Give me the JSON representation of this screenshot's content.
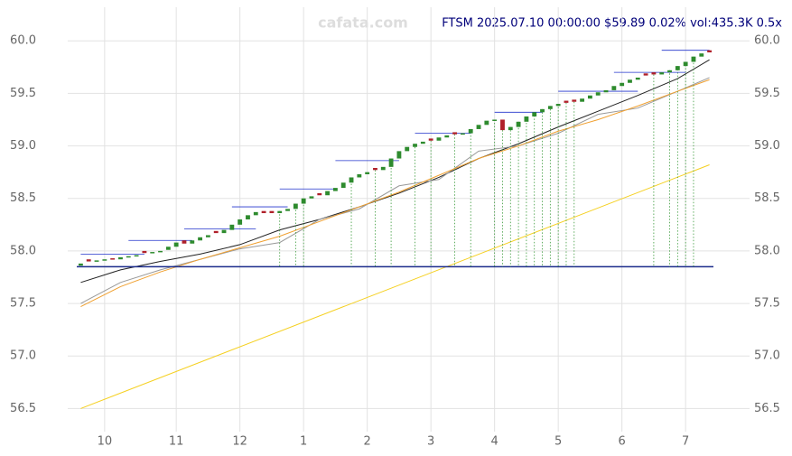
{
  "chart_data": {
    "type": "candlestick",
    "title": "FTSM 2025.07.10 00:00:00 $59.89 0.02% vol:435.3K 0.5x",
    "watermark": "cafata.com",
    "xlim": [
      -0.5,
      79.5
    ],
    "ylim": [
      56.28,
      60.32
    ],
    "yticks": [
      {
        "value": 56.5,
        "label": "56.5"
      },
      {
        "value": 57.0,
        "label": "57.0"
      },
      {
        "value": 57.5,
        "label": "57.5"
      },
      {
        "value": 58.0,
        "label": "58.0"
      },
      {
        "value": 58.5,
        "label": "58.5"
      },
      {
        "value": 59.0,
        "label": "59.0"
      },
      {
        "value": 59.5,
        "label": "59.5"
      },
      {
        "value": 60.0,
        "label": "60.0"
      }
    ],
    "xticks": [
      {
        "value": 3,
        "label": "10"
      },
      {
        "value": 12,
        "label": "11"
      },
      {
        "value": 20,
        "label": "12"
      },
      {
        "value": 28,
        "label": "1"
      },
      {
        "value": 36,
        "label": "2"
      },
      {
        "value": 44,
        "label": "3"
      },
      {
        "value": 52,
        "label": "4"
      },
      {
        "value": 60,
        "label": "5"
      },
      {
        "value": 68,
        "label": "6"
      },
      {
        "value": 76,
        "label": "7"
      }
    ],
    "grid": true,
    "up_color": "#2e8b2e",
    "down_color": "#b0202a",
    "open": [
      57.86,
      57.92,
      57.9,
      57.91,
      57.93,
      57.92,
      57.94,
      57.95,
      58.0,
      57.98,
      57.99,
      58.01,
      58.04,
      58.1,
      58.07,
      58.1,
      58.13,
      58.19,
      58.17,
      58.2,
      58.25,
      58.3,
      58.34,
      58.38,
      58.38,
      58.36,
      58.38,
      58.4,
      58.45,
      58.5,
      58.55,
      58.53,
      58.57,
      58.6,
      58.65,
      58.7,
      58.73,
      58.79,
      58.77,
      58.8,
      58.88,
      58.95,
      58.99,
      59.02,
      59.07,
      59.05,
      59.08,
      59.13,
      59.11,
      59.12,
      59.16,
      59.2,
      59.24,
      59.25,
      59.15,
      59.18,
      59.23,
      59.28,
      59.32,
      59.35,
      59.38,
      59.43,
      59.44,
      59.42,
      59.45,
      59.48,
      59.51,
      59.53,
      59.57,
      59.6,
      59.63,
      59.69,
      59.7,
      59.68,
      59.7,
      59.72,
      59.76,
      59.8,
      59.85,
      59.91
    ],
    "close": [
      57.88,
      57.9,
      57.91,
      57.92,
      57.92,
      57.94,
      57.95,
      57.96,
      57.98,
      57.99,
      58.0,
      58.04,
      58.08,
      58.07,
      58.1,
      58.13,
      58.15,
      58.17,
      58.2,
      58.25,
      58.3,
      58.34,
      58.37,
      58.36,
      58.36,
      58.38,
      58.4,
      58.45,
      58.5,
      58.52,
      58.53,
      58.57,
      58.6,
      58.65,
      58.7,
      58.73,
      58.75,
      58.77,
      58.8,
      58.88,
      58.95,
      58.99,
      59.02,
      59.04,
      59.05,
      59.08,
      59.1,
      59.11,
      59.12,
      59.16,
      59.2,
      59.24,
      59.25,
      59.15,
      59.18,
      59.23,
      59.28,
      59.32,
      59.35,
      59.38,
      59.4,
      59.41,
      59.42,
      59.45,
      59.48,
      59.51,
      59.53,
      59.57,
      59.6,
      59.63,
      59.65,
      59.67,
      59.68,
      59.7,
      59.72,
      59.76,
      59.8,
      59.85,
      59.88,
      59.89
    ],
    "lines": [
      {
        "color": "#222222",
        "x": [
          0,
          5,
          10,
          15,
          20,
          25,
          30,
          35,
          40,
          45,
          50,
          55,
          60,
          65,
          70,
          75,
          79
        ],
        "values": [
          57.7,
          57.82,
          57.9,
          57.97,
          58.06,
          58.2,
          58.3,
          58.42,
          58.55,
          58.7,
          58.88,
          59.02,
          59.18,
          59.33,
          59.48,
          59.64,
          59.82
        ]
      },
      {
        "color": "#999999",
        "x": [
          0,
          5,
          10,
          15,
          20,
          25,
          30,
          35,
          40,
          45,
          50,
          55,
          60,
          65,
          70,
          75,
          79
        ],
        "values": [
          57.5,
          57.7,
          57.82,
          57.92,
          58.02,
          58.08,
          58.3,
          58.4,
          58.62,
          58.68,
          58.95,
          59.0,
          59.12,
          59.3,
          59.36,
          59.52,
          59.65
        ]
      },
      {
        "color": "#f0a030",
        "x": [
          0,
          5,
          10,
          15,
          20,
          25,
          30,
          35,
          40,
          45,
          50,
          55,
          60,
          65,
          70,
          75,
          79
        ],
        "values": [
          57.47,
          57.66,
          57.8,
          57.92,
          58.03,
          58.14,
          58.28,
          58.42,
          58.56,
          58.72,
          58.88,
          59.0,
          59.14,
          59.25,
          59.38,
          59.52,
          59.63
        ]
      },
      {
        "color": "#f5d020",
        "x": [
          0,
          79
        ],
        "values": [
          56.5,
          58.82
        ]
      }
    ],
    "baseline": 57.85,
    "baseline_color": "#1a2a8a",
    "levels": [
      {
        "x": [
          0,
          8
        ],
        "value": 57.97
      },
      {
        "x": [
          6,
          14
        ],
        "value": 58.1
      },
      {
        "x": [
          13,
          22
        ],
        "value": 58.21
      },
      {
        "x": [
          19,
          26
        ],
        "value": 58.42
      },
      {
        "x": [
          25,
          32
        ],
        "value": 58.59
      },
      {
        "x": [
          32,
          40
        ],
        "value": 58.86
      },
      {
        "x": [
          42,
          49
        ],
        "value": 59.12
      },
      {
        "x": [
          52,
          58
        ],
        "value": 59.32
      },
      {
        "x": [
          60,
          70
        ],
        "value": 59.52
      },
      {
        "x": [
          67,
          76
        ],
        "value": 59.7
      },
      {
        "x": [
          73,
          79
        ],
        "value": 59.91
      }
    ],
    "level_color": "#2233cc",
    "markers": [
      25,
      27,
      28,
      34,
      37,
      39,
      42,
      44,
      47,
      49,
      52,
      53,
      54,
      55,
      56,
      57,
      58,
      59,
      60,
      61,
      62,
      72,
      74,
      75,
      76,
      77
    ],
    "marker_color": "#3a9a3a"
  }
}
